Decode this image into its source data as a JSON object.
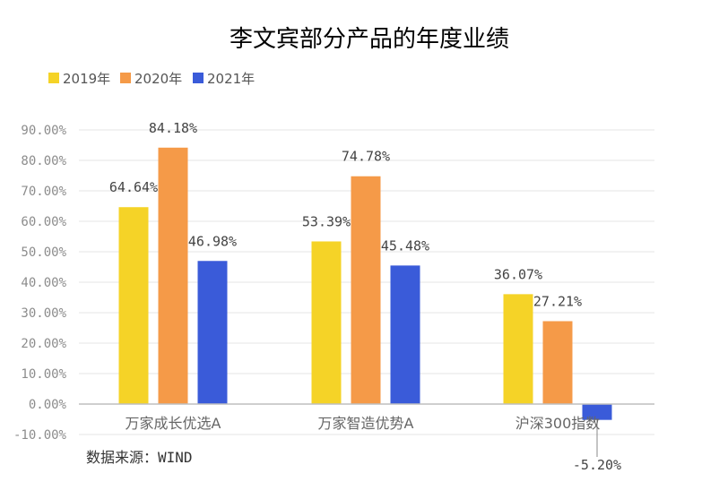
{
  "chart_data": {
    "type": "bar",
    "title": "李文宾部分产品的年度业绩",
    "categories": [
      "万家成长优选A",
      "万家智造优势A",
      "沪深300指数"
    ],
    "series": [
      {
        "name": "2019年",
        "values": [
          64.64,
          53.39,
          36.07
        ],
        "labels": [
          "64.64%",
          "53.39%",
          "36.07%"
        ],
        "color": "#F5D327"
      },
      {
        "name": "2020年",
        "values": [
          84.18,
          74.78,
          27.21
        ],
        "labels": [
          "84.18%",
          "74.78%",
          "27.21%"
        ],
        "color": "#F59A48"
      },
      {
        "name": "2021年",
        "values": [
          46.98,
          45.48,
          -5.2
        ],
        "labels": [
          "46.98%",
          "45.48%",
          "-5.20%"
        ],
        "color": "#3A5BD9"
      }
    ],
    "ylim": [
      -10,
      90
    ],
    "yticks": [
      -10,
      0,
      10,
      20,
      30,
      40,
      50,
      60,
      70,
      80,
      90
    ],
    "ytick_labels": [
      "-10.00%",
      "0.00%",
      "10.00%",
      "20.00%",
      "30.00%",
      "40.00%",
      "50.00%",
      "60.00%",
      "70.00%",
      "80.00%",
      "90.00%"
    ],
    "legend_position": "top-left",
    "grid": true
  },
  "source": "数据来源：WIND"
}
